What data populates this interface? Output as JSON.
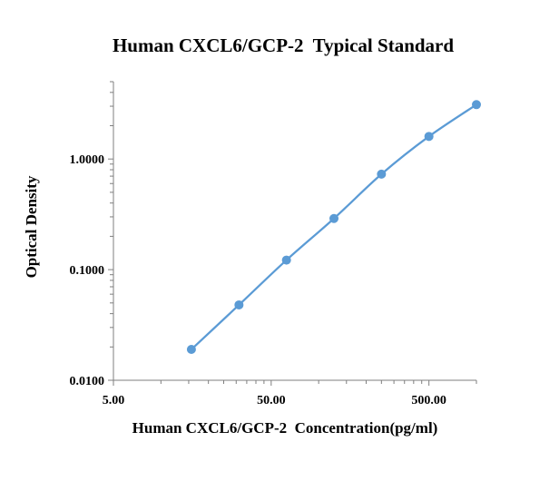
{
  "chart_data": {
    "type": "line",
    "title": "Human CXCL6/GCP-2  Typical Standard",
    "xlabel": "Human CXCL6/GCP-2  Concentration(pg/ml)",
    "ylabel": "Optical Density",
    "x_scale": "log",
    "y_scale": "log",
    "xlim": [
      5,
      1000
    ],
    "ylim": [
      0.01,
      5
    ],
    "x_ticks": [
      "5.00",
      "50.00",
      "500.00"
    ],
    "y_ticks": [
      "0.0100",
      "0.1000",
      "1.0000"
    ],
    "grid": false,
    "legend": "none",
    "series": [
      {
        "color": "#5b9bd5",
        "x": [
          15.6,
          31.25,
          62.5,
          125,
          250,
          500,
          1000
        ],
        "y": [
          0.019,
          0.048,
          0.122,
          0.29,
          0.73,
          1.6,
          3.1
        ]
      }
    ]
  }
}
